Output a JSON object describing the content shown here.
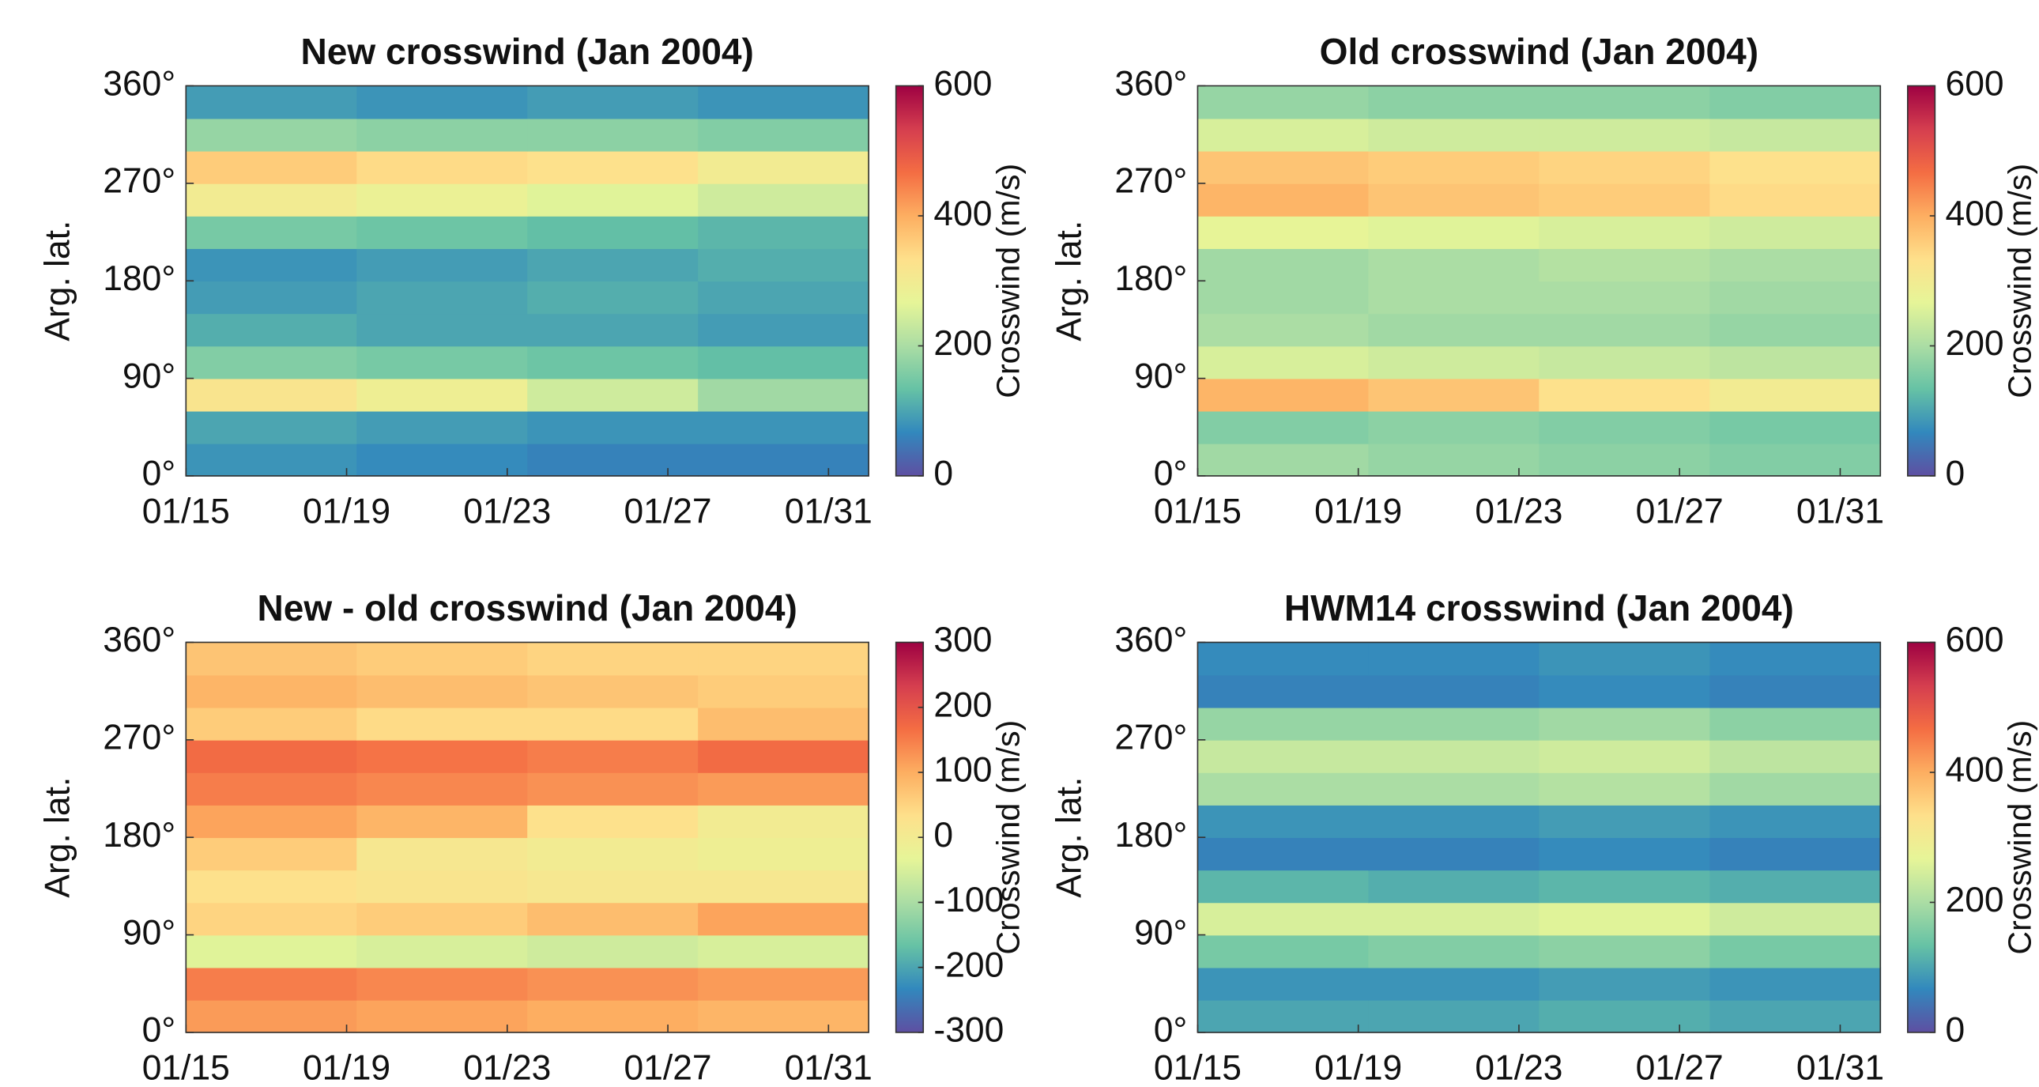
{
  "chart_data": [
    {
      "type": "heatmap",
      "title": "New crosswind (Jan 2004)",
      "ylabel": "Arg. lat.",
      "colorbar_label": "Crosswind (m/s)",
      "xlim": [
        15,
        32
      ],
      "ylim": [
        0,
        360
      ],
      "xticks": [
        {
          "value": 15,
          "label": "01/15"
        },
        {
          "value": 19,
          "label": "01/19"
        },
        {
          "value": 23,
          "label": "01/23"
        },
        {
          "value": 27,
          "label": "01/27"
        },
        {
          "value": 31,
          "label": "01/31"
        }
      ],
      "yticks": [
        {
          "value": 0,
          "label": "0°"
        },
        {
          "value": 90,
          "label": "90°"
        },
        {
          "value": 180,
          "label": "180°"
        },
        {
          "value": 270,
          "label": "270°"
        },
        {
          "value": 360,
          "label": "360°"
        }
      ],
      "xbins": [
        15,
        19.25,
        23.5,
        27.75,
        32
      ],
      "ybins": [
        0,
        30,
        60,
        90,
        120,
        150,
        180,
        210,
        240,
        270,
        300,
        330,
        360
      ],
      "z": [
        [
          80,
          70,
          60,
          60
        ],
        [
          100,
          90,
          80,
          80
        ],
        [
          320,
          290,
          240,
          190
        ],
        [
          160,
          150,
          140,
          130
        ],
        [
          110,
          100,
          100,
          90
        ],
        [
          90,
          100,
          110,
          100
        ],
        [
          80,
          90,
          100,
          110
        ],
        [
          150,
          140,
          130,
          120
        ],
        [
          300,
          280,
          260,
          240
        ],
        [
          360,
          340,
          330,
          300
        ],
        [
          180,
          170,
          170,
          160
        ],
        [
          90,
          80,
          90,
          80
        ]
      ],
      "clim": [
        0,
        600
      ],
      "cticks": [
        0,
        200,
        400,
        600
      ],
      "colormap": [
        "#5e4fa2",
        "#3288bd",
        "#66c2a5",
        "#abdda4",
        "#e6f598",
        "#fee08b",
        "#fdae61",
        "#f46d43",
        "#d53e4f",
        "#9e0142"
      ]
    },
    {
      "type": "heatmap",
      "title": "Old crosswind (Jan 2004)",
      "ylabel": "Arg. lat.",
      "colorbar_label": "Crosswind (m/s)",
      "xlim": [
        15,
        32
      ],
      "ylim": [
        0,
        360
      ],
      "xticks": [
        {
          "value": 15,
          "label": "01/15"
        },
        {
          "value": 19,
          "label": "01/19"
        },
        {
          "value": 23,
          "label": "01/23"
        },
        {
          "value": 27,
          "label": "01/27"
        },
        {
          "value": 31,
          "label": "01/31"
        }
      ],
      "yticks": [
        {
          "value": 0,
          "label": "0°"
        },
        {
          "value": 90,
          "label": "90°"
        },
        {
          "value": 180,
          "label": "180°"
        },
        {
          "value": 270,
          "label": "270°"
        },
        {
          "value": 360,
          "label": "360°"
        }
      ],
      "xbins": [
        15,
        19.25,
        23.5,
        27.75,
        32
      ],
      "ybins": [
        0,
        30,
        60,
        90,
        120,
        150,
        180,
        210,
        240,
        270,
        300,
        330,
        360
      ],
      "z": [
        [
          190,
          180,
          170,
          160
        ],
        [
          160,
          170,
          160,
          150
        ],
        [
          390,
          370,
          330,
          300
        ],
        [
          250,
          240,
          230,
          220
        ],
        [
          200,
          190,
          190,
          180
        ],
        [
          190,
          200,
          200,
          190
        ],
        [
          190,
          200,
          210,
          200
        ],
        [
          270,
          260,
          250,
          240
        ],
        [
          390,
          370,
          360,
          340
        ],
        [
          370,
          360,
          350,
          330
        ],
        [
          250,
          240,
          240,
          230
        ],
        [
          180,
          170,
          170,
          160
        ]
      ],
      "clim": [
        0,
        600
      ],
      "cticks": [
        0,
        200,
        400,
        600
      ],
      "colormap": [
        "#5e4fa2",
        "#3288bd",
        "#66c2a5",
        "#abdda4",
        "#e6f598",
        "#fee08b",
        "#fdae61",
        "#f46d43",
        "#d53e4f",
        "#9e0142"
      ]
    },
    {
      "type": "heatmap",
      "title": "New - old crosswind (Jan 2004)",
      "ylabel": "Arg. lat.",
      "colorbar_label": "Crosswind (m/s)",
      "xlim": [
        15,
        32
      ],
      "ylim": [
        0,
        360
      ],
      "xticks": [
        {
          "value": 15,
          "label": "01/15"
        },
        {
          "value": 19,
          "label": "01/19"
        },
        {
          "value": 23,
          "label": "01/23"
        },
        {
          "value": 27,
          "label": "01/27"
        },
        {
          "value": 31,
          "label": "01/31"
        }
      ],
      "yticks": [
        {
          "value": 0,
          "label": "0°"
        },
        {
          "value": 90,
          "label": "90°"
        },
        {
          "value": 180,
          "label": "180°"
        },
        {
          "value": 270,
          "label": "270°"
        },
        {
          "value": 360,
          "label": "360°"
        }
      ],
      "xbins": [
        15,
        19.25,
        23.5,
        27.75,
        32
      ],
      "ybins": [
        0,
        30,
        60,
        90,
        120,
        150,
        180,
        210,
        240,
        270,
        300,
        330,
        360
      ],
      "z": [
        [
          120,
          110,
          100,
          90
        ],
        [
          150,
          140,
          130,
          120
        ],
        [
          -40,
          -50,
          -60,
          -50
        ],
        [
          50,
          60,
          80,
          110
        ],
        [
          30,
          20,
          10,
          10
        ],
        [
          60,
          10,
          0,
          -10
        ],
        [
          110,
          90,
          30,
          0
        ],
        [
          150,
          140,
          130,
          120
        ],
        [
          170,
          160,
          150,
          170
        ],
        [
          60,
          40,
          40,
          80
        ],
        [
          90,
          80,
          70,
          60
        ],
        [
          70,
          60,
          50,
          50
        ]
      ],
      "clim": [
        -300,
        300
      ],
      "cticks": [
        -300,
        -200,
        -100,
        0,
        100,
        200,
        300
      ],
      "colormap": [
        "#5e4fa2",
        "#3288bd",
        "#66c2a5",
        "#abdda4",
        "#e6f598",
        "#fee08b",
        "#fdae61",
        "#f46d43",
        "#d53e4f",
        "#9e0142"
      ]
    },
    {
      "type": "heatmap",
      "title": "HWM14 crosswind (Jan 2004)",
      "ylabel": "Arg. lat.",
      "colorbar_label": "Crosswind (m/s)",
      "xlim": [
        15,
        32
      ],
      "ylim": [
        0,
        360
      ],
      "xticks": [
        {
          "value": 15,
          "label": "01/15"
        },
        {
          "value": 19,
          "label": "01/19"
        },
        {
          "value": 23,
          "label": "01/23"
        },
        {
          "value": 27,
          "label": "01/27"
        },
        {
          "value": 31,
          "label": "01/31"
        }
      ],
      "yticks": [
        {
          "value": 0,
          "label": "0°"
        },
        {
          "value": 90,
          "label": "90°"
        },
        {
          "value": 180,
          "label": "180°"
        },
        {
          "value": 270,
          "label": "270°"
        },
        {
          "value": 360,
          "label": "360°"
        }
      ],
      "xbins": [
        15,
        19.25,
        23.5,
        27.75,
        32
      ],
      "ybins": [
        0,
        30,
        60,
        90,
        120,
        150,
        180,
        210,
        240,
        270,
        300,
        330,
        360
      ],
      "z": [
        [
          100,
          100,
          110,
          100
        ],
        [
          80,
          80,
          90,
          80
        ],
        [
          150,
          160,
          170,
          150
        ],
        [
          250,
          250,
          260,
          240
        ],
        [
          120,
          110,
          120,
          110
        ],
        [
          60,
          60,
          70,
          60
        ],
        [
          80,
          80,
          90,
          80
        ],
        [
          200,
          200,
          210,
          190
        ],
        [
          230,
          230,
          240,
          220
        ],
        [
          180,
          180,
          190,
          170
        ],
        [
          60,
          60,
          70,
          60
        ],
        [
          70,
          70,
          80,
          70
        ]
      ],
      "clim": [
        0,
        600
      ],
      "cticks": [
        0,
        200,
        400,
        600
      ],
      "colormap": [
        "#5e4fa2",
        "#3288bd",
        "#66c2a5",
        "#abdda4",
        "#e6f598",
        "#fee08b",
        "#fdae61",
        "#f46d43",
        "#d53e4f",
        "#9e0142"
      ]
    }
  ]
}
